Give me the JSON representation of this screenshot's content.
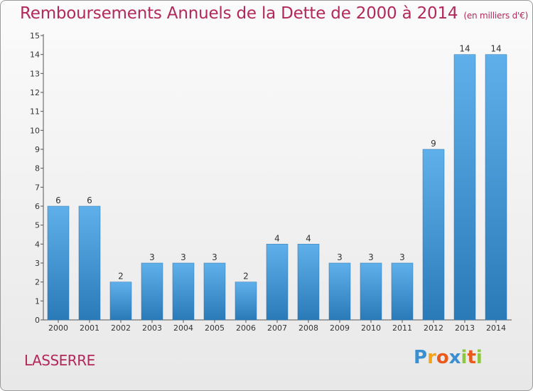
{
  "chart_data": {
    "type": "bar",
    "title": "Remboursements Annuels de la Dette de 2000 à 2014",
    "subtitle": "(en milliers d'€)",
    "categories": [
      "2000",
      "2001",
      "2002",
      "2003",
      "2004",
      "2005",
      "2006",
      "2007",
      "2008",
      "2009",
      "2010",
      "2011",
      "2012",
      "2013",
      "2014"
    ],
    "values": [
      6,
      6,
      2,
      3,
      3,
      3,
      2,
      4,
      4,
      3,
      3,
      3,
      9,
      14,
      14
    ],
    "ylim": [
      0,
      15
    ],
    "yticks": [
      0,
      1,
      2,
      3,
      4,
      5,
      6,
      7,
      8,
      9,
      10,
      11,
      12,
      13,
      14,
      15
    ],
    "grid": false,
    "bar_color": "#3a8fd1"
  },
  "footer": {
    "commune": "LASSERRE"
  },
  "logo": {
    "text": "Proxiti",
    "letters": [
      {
        "ch": "P",
        "color": "#3a8fd1"
      },
      {
        "ch": "r",
        "color": "#f2a51a"
      },
      {
        "ch": "o",
        "color": "#e95a1c"
      },
      {
        "ch": "x",
        "color": "#3a8fd1"
      },
      {
        "ch": "i",
        "color": "#8dc63f"
      },
      {
        "ch": "t",
        "color": "#e95a1c"
      },
      {
        "ch": "i",
        "color": "#8dc63f"
      }
    ]
  }
}
